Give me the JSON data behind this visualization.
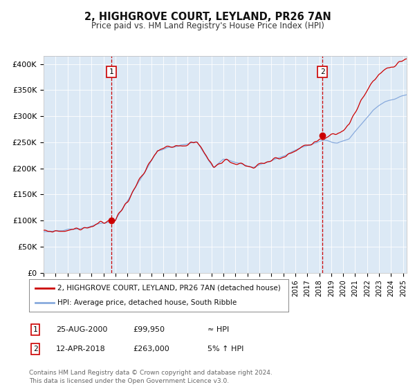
{
  "title": "2, HIGHGROVE COURT, LEYLAND, PR26 7AN",
  "subtitle": "Price paid vs. HM Land Registry's House Price Index (HPI)",
  "ylabel_ticks": [
    "£0",
    "£50K",
    "£100K",
    "£150K",
    "£200K",
    "£250K",
    "£300K",
    "£350K",
    "£400K"
  ],
  "ytick_values": [
    0,
    50000,
    100000,
    150000,
    200000,
    250000,
    300000,
    350000,
    400000
  ],
  "ylim": [
    0,
    415000
  ],
  "xlim_start": 1995.0,
  "xlim_end": 2025.3,
  "background_color": "#dce9f5",
  "line_color_red": "#cc0000",
  "line_color_blue": "#88aadd",
  "sale1_date": 2000.65,
  "sale1_price": 99950,
  "sale2_date": 2018.27,
  "sale2_price": 263000,
  "legend_label_red": "2, HIGHGROVE COURT, LEYLAND, PR26 7AN (detached house)",
  "legend_label_blue": "HPI: Average price, detached house, South Ribble",
  "table_row1": [
    "1",
    "25-AUG-2000",
    "£99,950",
    "≈ HPI"
  ],
  "table_row2": [
    "2",
    "12-APR-2018",
    "£263,000",
    "5% ↑ HPI"
  ],
  "footer": "Contains HM Land Registry data © Crown copyright and database right 2024.\nThis data is licensed under the Open Government Licence v3.0."
}
